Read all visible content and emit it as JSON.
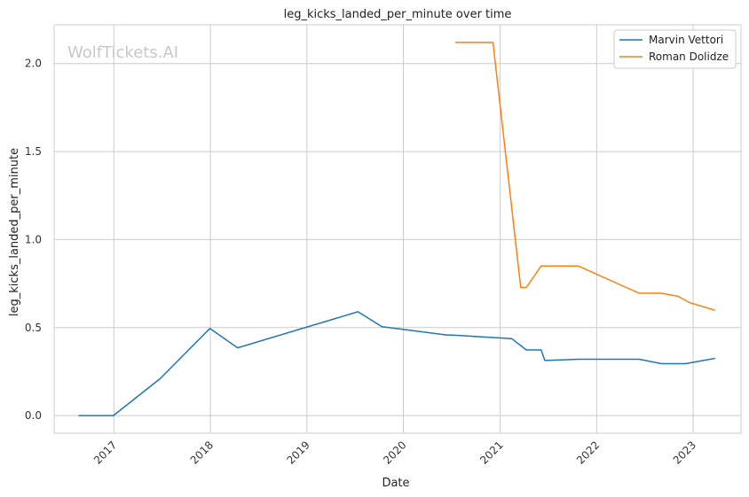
{
  "chart_data": {
    "type": "line",
    "title": "leg_kicks_landed_per_minute over time",
    "xlabel": "Date",
    "ylabel": "leg_kicks_landed_per_minute",
    "watermark": "WolfTickets.AI",
    "xlim": [
      "2016-05-20",
      "2023-07-01"
    ],
    "ylim": [
      -0.1,
      2.22
    ],
    "xticks": [
      "2017-01-01",
      "2018-01-01",
      "2019-01-01",
      "2020-01-01",
      "2021-01-01",
      "2022-01-01",
      "2023-01-01"
    ],
    "xtick_labels": [
      "2017",
      "2018",
      "2019",
      "2020",
      "2021",
      "2022",
      "2023"
    ],
    "yticks": [
      0.0,
      0.5,
      1.0,
      1.5,
      2.0
    ],
    "ytick_labels": [
      "0.0",
      "0.5",
      "1.0",
      "1.5",
      "2.0"
    ],
    "grid": true,
    "legend_position": "top-right",
    "series": [
      {
        "name": "Marvin Vettori",
        "color": "#1f77b4",
        "points": [
          [
            "2016-08-20",
            0.0
          ],
          [
            "2016-12-30",
            0.0
          ],
          [
            "2017-06-25",
            0.21
          ],
          [
            "2017-12-30",
            0.495
          ],
          [
            "2018-04-14",
            0.385
          ],
          [
            "2019-07-13",
            0.59
          ],
          [
            "2019-10-12",
            0.505
          ],
          [
            "2020-06-13",
            0.458
          ],
          [
            "2020-06-27",
            0.458
          ],
          [
            "2021-02-14",
            0.437
          ],
          [
            "2021-04-10",
            0.373
          ],
          [
            "2021-06-05",
            0.373
          ],
          [
            "2021-06-19",
            0.313
          ],
          [
            "2021-10-23",
            0.32
          ],
          [
            "2022-06-11",
            0.32
          ],
          [
            "2022-09-03",
            0.295
          ],
          [
            "2022-12-03",
            0.295
          ],
          [
            "2023-03-25",
            0.325
          ]
        ]
      },
      {
        "name": "Roman Dolidze",
        "color": "#ff7f0e",
        "points": [
          [
            "2020-07-15",
            2.12
          ],
          [
            "2020-12-05",
            2.12
          ],
          [
            "2021-03-20",
            0.728
          ],
          [
            "2021-04-10",
            0.728
          ],
          [
            "2021-06-05",
            0.85
          ],
          [
            "2021-10-23",
            0.85
          ],
          [
            "2022-06-11",
            0.695
          ],
          [
            "2022-09-03",
            0.695
          ],
          [
            "2022-11-05",
            0.678
          ],
          [
            "2022-12-17",
            0.643
          ],
          [
            "2023-03-25",
            0.598
          ]
        ]
      }
    ]
  }
}
